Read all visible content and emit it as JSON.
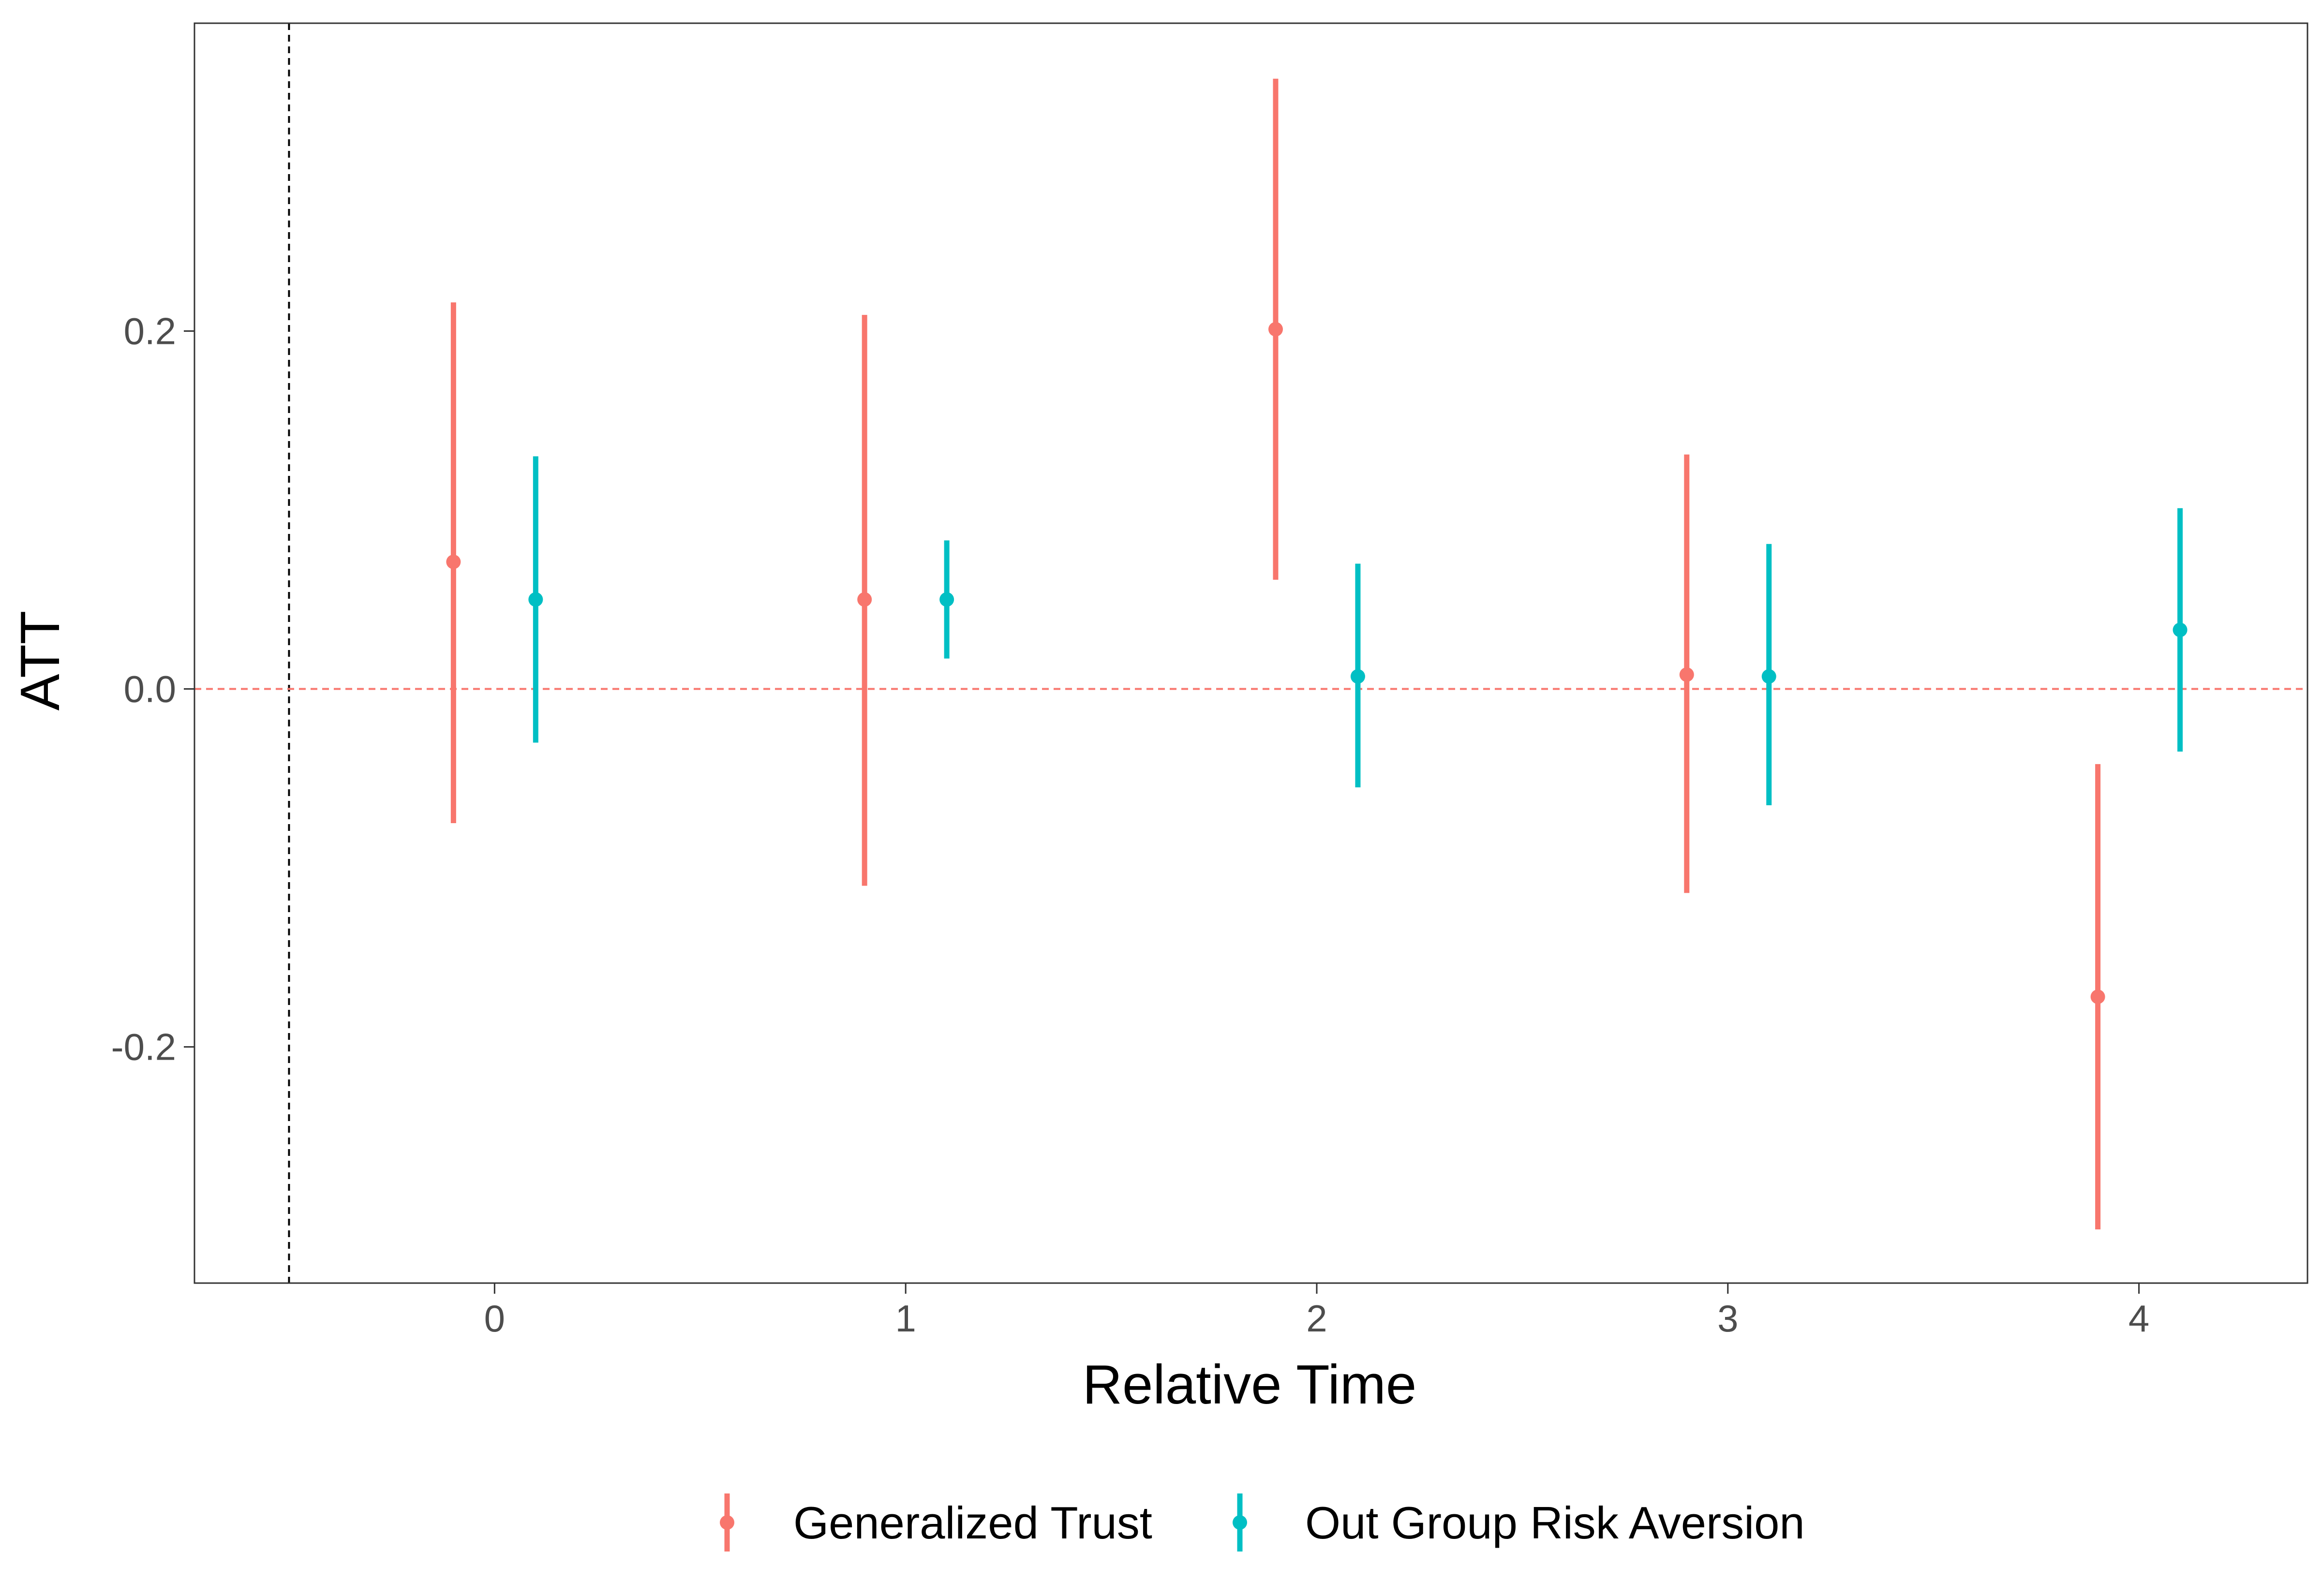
{
  "chart_data": {
    "type": "scatter",
    "subtype": "point-range",
    "title": "",
    "xlabel": "Relative Time",
    "ylabel": "ATT",
    "x_ticks": [
      0,
      1,
      2,
      3,
      4
    ],
    "x_tick_labels": [
      "0",
      "1",
      "2",
      "3",
      "4"
    ],
    "y_ticks": [
      -0.2,
      0.0,
      0.2
    ],
    "y_tick_labels": [
      "-0.2",
      "0.0",
      "0.2"
    ],
    "xlim": [
      -0.73,
      4.41
    ],
    "ylim": [
      -0.332,
      0.372
    ],
    "grid": false,
    "legend_position": "bottom",
    "reference_lines": [
      {
        "axis": "x",
        "value": -0.5,
        "style": "dashed",
        "color": "#000000"
      },
      {
        "axis": "y",
        "value": 0.0,
        "style": "dashed",
        "color": "#F8766D"
      }
    ],
    "series": [
      {
        "name": "Generalized Trust",
        "color": "#F8766D",
        "points": [
          {
            "x": -0.1,
            "y": 0.071,
            "lower": -0.075,
            "upper": 0.216
          },
          {
            "x": 0.9,
            "y": 0.05,
            "lower": -0.11,
            "upper": 0.209
          },
          {
            "x": 1.9,
            "y": 0.201,
            "lower": 0.061,
            "upper": 0.341
          },
          {
            "x": 2.9,
            "y": 0.008,
            "lower": -0.114,
            "upper": 0.131
          },
          {
            "x": 3.9,
            "y": -0.172,
            "lower": -0.302,
            "upper": -0.042
          }
        ]
      },
      {
        "name": "Out Group Risk Aversion",
        "color": "#00BFC4",
        "points": [
          {
            "x": 0.1,
            "y": 0.05,
            "lower": -0.03,
            "upper": 0.13
          },
          {
            "x": 1.1,
            "y": 0.05,
            "lower": 0.017,
            "upper": 0.083
          },
          {
            "x": 2.1,
            "y": 0.007,
            "lower": -0.055,
            "upper": 0.07
          },
          {
            "x": 3.1,
            "y": 0.007,
            "lower": -0.065,
            "upper": 0.081
          },
          {
            "x": 4.1,
            "y": 0.033,
            "lower": -0.035,
            "upper": 0.101
          }
        ]
      }
    ]
  }
}
